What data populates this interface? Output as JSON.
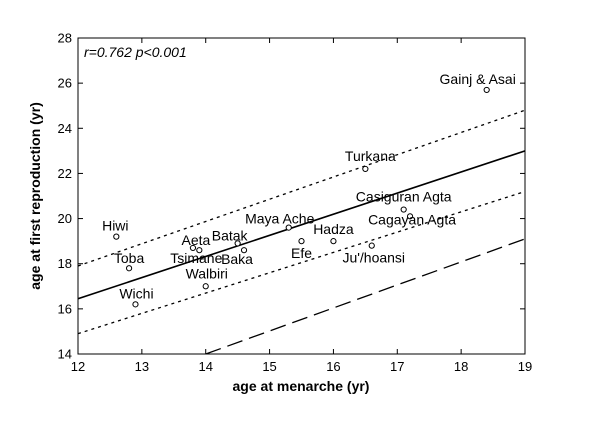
{
  "chart_data": {
    "type": "scatter",
    "xlabel": "age at menarche (yr)",
    "ylabel": "age at first reproduction (yr)",
    "xlim": [
      12,
      19
    ],
    "ylim": [
      14,
      28
    ],
    "x_ticks": [
      12,
      13,
      14,
      15,
      16,
      17,
      18,
      19
    ],
    "y_ticks": [
      14,
      16,
      18,
      20,
      22,
      24,
      26,
      28
    ],
    "grid": false,
    "annotation": "r=0.762 p<0.001",
    "points": [
      {
        "label": "Gainj & Asai",
        "x": 18.4,
        "y": 25.7
      },
      {
        "label": "Turkana",
        "x": 16.5,
        "y": 22.2
      },
      {
        "label": "Casiguran Agta",
        "x": 17.1,
        "y": 20.4
      },
      {
        "label": "Cagayan Agta",
        "x": 17.2,
        "y": 20.1
      },
      {
        "label": "Maya Ache",
        "x": 15.3,
        "y": 19.6
      },
      {
        "label": "Hadza",
        "x": 16.0,
        "y": 19.0
      },
      {
        "label": "Efe",
        "x": 15.5,
        "y": 19.0
      },
      {
        "label": "Ju'/hoansi",
        "x": 16.6,
        "y": 18.8
      },
      {
        "label": "Batak",
        "x": 14.5,
        "y": 18.9
      },
      {
        "label": "Hiwi",
        "x": 12.6,
        "y": 19.2
      },
      {
        "label": "Aeta",
        "x": 13.8,
        "y": 18.7
      },
      {
        "label": "Tsimane",
        "x": 13.9,
        "y": 18.6
      },
      {
        "label": "Baka",
        "x": 14.6,
        "y": 18.6
      },
      {
        "label": "Toba",
        "x": 12.8,
        "y": 17.8
      },
      {
        "label": "Walbiri",
        "x": 14.0,
        "y": 17.0
      },
      {
        "label": "Wichi",
        "x": 12.9,
        "y": 16.2
      }
    ],
    "lines": [
      {
        "style": "solid",
        "points": [
          [
            12,
            16.45
          ],
          [
            19,
            23.0
          ]
        ]
      },
      {
        "style": "dotted",
        "points": [
          [
            12,
            17.9
          ],
          [
            19,
            24.8
          ]
        ]
      },
      {
        "style": "dotted",
        "points": [
          [
            12,
            14.9
          ],
          [
            19,
            21.2
          ]
        ]
      },
      {
        "style": "dashed",
        "points": [
          [
            14,
            14.0
          ],
          [
            19,
            19.1
          ]
        ]
      }
    ]
  }
}
